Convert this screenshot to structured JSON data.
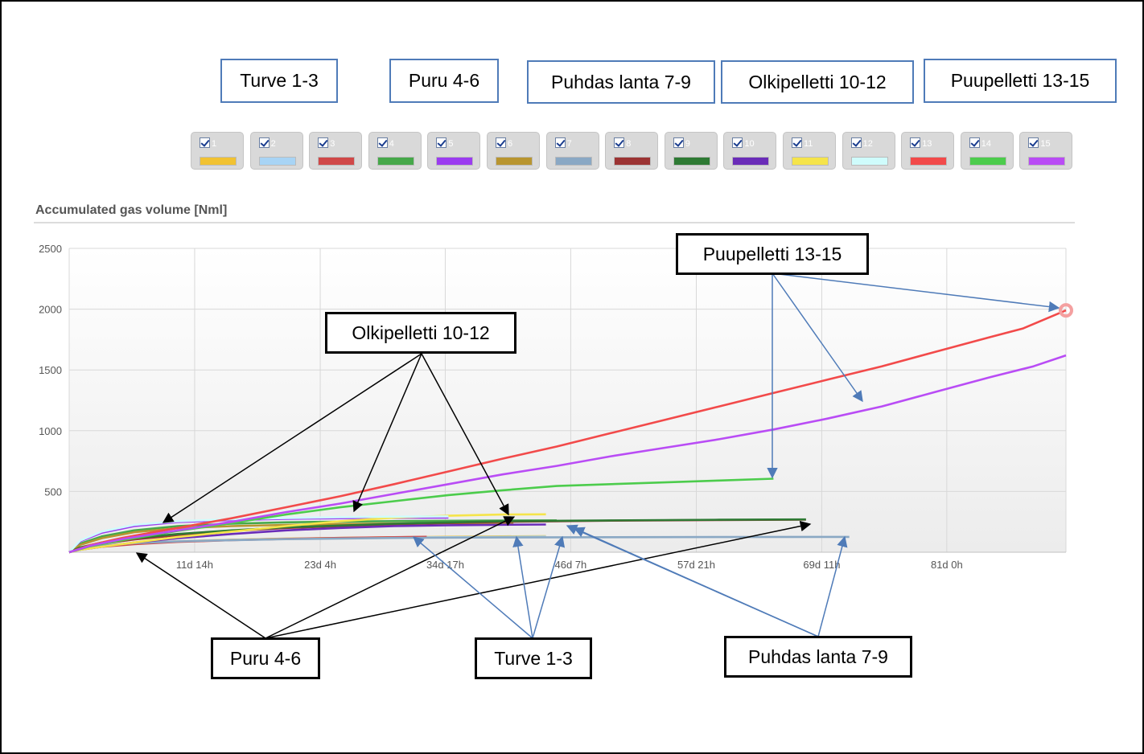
{
  "legend_labels": [
    "Turve 1-3",
    "Puru 4-6",
    "Puhdas lanta 7-9",
    "Olkipelletti 10-12",
    "Puupelletti 13-15"
  ],
  "series_toggles": [
    {
      "label": "1",
      "color": "#f1c232"
    },
    {
      "label": "2",
      "color": "#a8d4f5"
    },
    {
      "label": "3",
      "color": "#d04848"
    },
    {
      "label": "4",
      "color": "#46a84a"
    },
    {
      "label": "5",
      "color": "#9b3cf0"
    },
    {
      "label": "6",
      "color": "#b89530"
    },
    {
      "label": "7",
      "color": "#8aa8c4"
    },
    {
      "label": "8",
      "color": "#9c3434"
    },
    {
      "label": "9",
      "color": "#2e7a34"
    },
    {
      "label": "10",
      "color": "#6a2cb8"
    },
    {
      "label": "11",
      "color": "#f5e44a"
    },
    {
      "label": "12",
      "color": "#cffcfc"
    },
    {
      "label": "13",
      "color": "#f24a4a"
    },
    {
      "label": "14",
      "color": "#4ccc4c"
    },
    {
      "label": "15",
      "color": "#b94cf5"
    }
  ],
  "callouts": {
    "puupelletti": "Puupelletti 13-15",
    "olkipelletti": "Olkipelletti 10-12",
    "puru": "Puru 4-6",
    "turve": "Turve 1-3",
    "puhdas_lanta": "Puhdas lanta 7-9"
  },
  "chart_data": {
    "type": "line",
    "title": "Accumulated gas volume [Nml]",
    "xlabel": "",
    "ylabel": "",
    "x_unit": "days",
    "xlim": [
      0,
      92
    ],
    "ylim": [
      0,
      2500
    ],
    "y_ticks": [
      500,
      1000,
      1500,
      2000,
      2500
    ],
    "x_tick_labels": [
      {
        "x": 11.58,
        "label": "11d 14h"
      },
      {
        "x": 23.17,
        "label": "23d 4h"
      },
      {
        "x": 34.71,
        "label": "34d 17h"
      },
      {
        "x": 46.29,
        "label": "46d 7h"
      },
      {
        "x": 57.88,
        "label": "57d 21h"
      },
      {
        "x": 69.46,
        "label": "69d 11h"
      },
      {
        "x": 81.0,
        "label": "81d 0h"
      }
    ],
    "grid": true,
    "series": [
      {
        "color": "#f1c232",
        "points": [
          [
            0,
            0
          ],
          [
            1,
            25
          ],
          [
            3,
            50
          ],
          [
            6,
            72
          ],
          [
            10,
            90
          ],
          [
            15,
            103
          ],
          [
            20,
            112
          ],
          [
            25,
            118
          ],
          [
            30,
            123
          ],
          [
            35,
            127
          ],
          [
            40,
            130
          ],
          [
            44,
            132
          ]
        ]
      },
      {
        "color": "#a8d4f5",
        "points": [
          [
            0,
            0
          ],
          [
            1,
            24
          ],
          [
            3,
            48
          ],
          [
            6,
            70
          ],
          [
            10,
            88
          ],
          [
            15,
            101
          ],
          [
            20,
            110
          ],
          [
            25,
            116
          ],
          [
            30,
            121
          ],
          [
            35,
            124
          ],
          [
            40,
            126
          ],
          [
            44,
            128
          ]
        ]
      },
      {
        "color": "#d04848",
        "points": [
          [
            0,
            0
          ],
          [
            1,
            22
          ],
          [
            3,
            45
          ],
          [
            6,
            67
          ],
          [
            10,
            85
          ],
          [
            15,
            99
          ],
          [
            20,
            110
          ],
          [
            25,
            118
          ],
          [
            30,
            124
          ],
          [
            33,
            127
          ]
        ]
      },
      {
        "color": "#46a84a",
        "points": [
          [
            0,
            0
          ],
          [
            1,
            70
          ],
          [
            3,
            130
          ],
          [
            6,
            180
          ],
          [
            10,
            215
          ],
          [
            15,
            235
          ],
          [
            20,
            246
          ],
          [
            25,
            252
          ],
          [
            30,
            256
          ],
          [
            38,
            260
          ],
          [
            45,
            262
          ]
        ]
      },
      {
        "color": "#9b3cf0",
        "points": [
          [
            0,
            0
          ],
          [
            1,
            90
          ],
          [
            3,
            160
          ],
          [
            6,
            215
          ],
          [
            10,
            248
          ],
          [
            15,
            265
          ],
          [
            20,
            275
          ],
          [
            25,
            280
          ],
          [
            30,
            283
          ],
          [
            35,
            285
          ]
        ]
      },
      {
        "color": "#b89530",
        "points": [
          [
            0,
            0
          ],
          [
            1,
            60
          ],
          [
            3,
            115
          ],
          [
            6,
            165
          ],
          [
            10,
            198
          ],
          [
            15,
            215
          ],
          [
            20,
            225
          ],
          [
            25,
            232
          ],
          [
            30,
            237
          ],
          [
            38,
            240
          ],
          [
            41,
            242
          ]
        ]
      },
      {
        "color": "#8aa8c4",
        "points": [
          [
            0,
            0
          ],
          [
            1,
            30
          ],
          [
            3,
            55
          ],
          [
            6,
            75
          ],
          [
            10,
            90
          ],
          [
            20,
            108
          ],
          [
            30,
            118
          ],
          [
            40,
            122
          ],
          [
            50,
            124
          ],
          [
            60,
            125
          ],
          [
            72,
            126
          ]
        ]
      },
      {
        "color": "#9c3434",
        "points": [
          [
            0,
            0
          ],
          [
            1,
            35
          ],
          [
            3,
            70
          ],
          [
            6,
            105
          ],
          [
            10,
            140
          ],
          [
            15,
            175
          ],
          [
            20,
            200
          ],
          [
            30,
            230
          ],
          [
            40,
            250
          ],
          [
            50,
            260
          ],
          [
            60,
            265
          ],
          [
            68,
            268
          ]
        ]
      },
      {
        "color": "#2e7a34",
        "points": [
          [
            0,
            0
          ],
          [
            1,
            40
          ],
          [
            3,
            80
          ],
          [
            6,
            115
          ],
          [
            10,
            150
          ],
          [
            15,
            180
          ],
          [
            20,
            205
          ],
          [
            30,
            235
          ],
          [
            40,
            255
          ],
          [
            50,
            262
          ],
          [
            60,
            267
          ],
          [
            68,
            270
          ]
        ]
      },
      {
        "color": "#6a2cb8",
        "points": [
          [
            0,
            0
          ],
          [
            1,
            20
          ],
          [
            3,
            45
          ],
          [
            6,
            80
          ],
          [
            10,
            115
          ],
          [
            15,
            150
          ],
          [
            20,
            180
          ],
          [
            25,
            200
          ],
          [
            30,
            215
          ],
          [
            35,
            222
          ],
          [
            40,
            226
          ],
          [
            44,
            228
          ]
        ]
      },
      {
        "color": "#f5e44a",
        "points": [
          [
            0,
            0
          ],
          [
            1,
            20
          ],
          [
            3,
            45
          ],
          [
            6,
            80
          ],
          [
            10,
            125
          ],
          [
            15,
            170
          ],
          [
            20,
            215
          ],
          [
            25,
            255
          ],
          [
            30,
            285
          ],
          [
            35,
            300
          ],
          [
            40,
            310
          ],
          [
            44,
            312
          ]
        ]
      },
      {
        "color": "#cffcfc",
        "points": [
          [
            0,
            0
          ],
          [
            1,
            95
          ],
          [
            3,
            170
          ],
          [
            6,
            225
          ],
          [
            10,
            255
          ],
          [
            15,
            272
          ],
          [
            20,
            282
          ],
          [
            25,
            288
          ],
          [
            30,
            292
          ],
          [
            35,
            295
          ]
        ]
      },
      {
        "color": "#f24a4a",
        "points": [
          [
            0,
            0
          ],
          [
            2,
            60
          ],
          [
            5,
            120
          ],
          [
            10,
            200
          ],
          [
            15,
            280
          ],
          [
            20,
            370
          ],
          [
            25,
            460
          ],
          [
            30,
            560
          ],
          [
            35,
            665
          ],
          [
            40,
            770
          ],
          [
            45,
            870
          ],
          [
            50,
            980
          ],
          [
            55,
            1090
          ],
          [
            60,
            1200
          ],
          [
            65,
            1310
          ],
          [
            70,
            1420
          ],
          [
            75,
            1530
          ],
          [
            80,
            1650
          ],
          [
            85,
            1770
          ],
          [
            88,
            1840
          ],
          [
            92,
            1990
          ]
        ]
      },
      {
        "color": "#4ccc4c",
        "points": [
          [
            0,
            0
          ],
          [
            2,
            50
          ],
          [
            5,
            100
          ],
          [
            10,
            175
          ],
          [
            15,
            240
          ],
          [
            20,
            310
          ],
          [
            25,
            370
          ],
          [
            30,
            420
          ],
          [
            35,
            470
          ],
          [
            40,
            510
          ],
          [
            45,
            545
          ],
          [
            50,
            560
          ],
          [
            55,
            575
          ],
          [
            60,
            590
          ],
          [
            65,
            605
          ]
        ]
      },
      {
        "color": "#b94cf5",
        "points": [
          [
            0,
            0
          ],
          [
            2,
            55
          ],
          [
            5,
            110
          ],
          [
            10,
            180
          ],
          [
            15,
            250
          ],
          [
            20,
            330
          ],
          [
            25,
            400
          ],
          [
            30,
            480
          ],
          [
            35,
            560
          ],
          [
            40,
            640
          ],
          [
            45,
            710
          ],
          [
            50,
            790
          ],
          [
            55,
            860
          ],
          [
            60,
            930
          ],
          [
            65,
            1010
          ],
          [
            70,
            1100
          ],
          [
            75,
            1200
          ],
          [
            80,
            1320
          ],
          [
            85,
            1440
          ],
          [
            89,
            1530
          ],
          [
            92,
            1620
          ]
        ]
      }
    ]
  }
}
